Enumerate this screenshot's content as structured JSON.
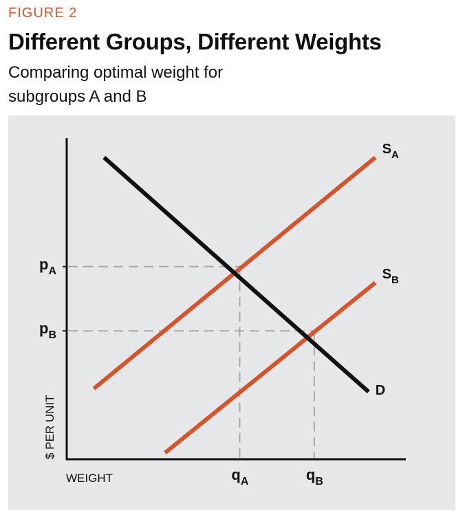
{
  "header": {
    "figure_label": "FIGURE 2",
    "title": "Different Groups, Different Weights",
    "subtitle": "Comparing optimal weight for subgroups A and B"
  },
  "colors": {
    "accent": "#d2552b",
    "demand": "#111111",
    "panel_bg": "#e6e7e8",
    "guide": "#a8a8a8"
  },
  "chart_data": {
    "type": "line",
    "title": "Different Groups, Different Weights",
    "xlabel": "WEIGHT",
    "ylabel": "$ PER UNIT",
    "xlim": [
      0,
      100
    ],
    "ylim": [
      0,
      100
    ],
    "grid": false,
    "series": [
      {
        "name": "S_A",
        "label_main": "S",
        "label_sub": "A",
        "color": "#d2552b",
        "x": [
          8,
          91
        ],
        "y": [
          22,
          94
        ]
      },
      {
        "name": "S_B",
        "label_main": "S",
        "label_sub": "B",
        "color": "#d2552b",
        "x": [
          29,
          91
        ],
        "y": [
          2,
          55
        ]
      },
      {
        "name": "D",
        "label_main": "D",
        "label_sub": "",
        "color": "#111111",
        "x": [
          11,
          89
        ],
        "y": [
          94,
          21
        ]
      }
    ],
    "price_levels": [
      {
        "main": "p",
        "sub": "A",
        "y": 60
      },
      {
        "main": "p",
        "sub": "B",
        "y": 40
      }
    ],
    "quantity_levels": [
      {
        "main": "q",
        "sub": "A",
        "x": 51
      },
      {
        "main": "q",
        "sub": "B",
        "x": 73
      }
    ]
  }
}
